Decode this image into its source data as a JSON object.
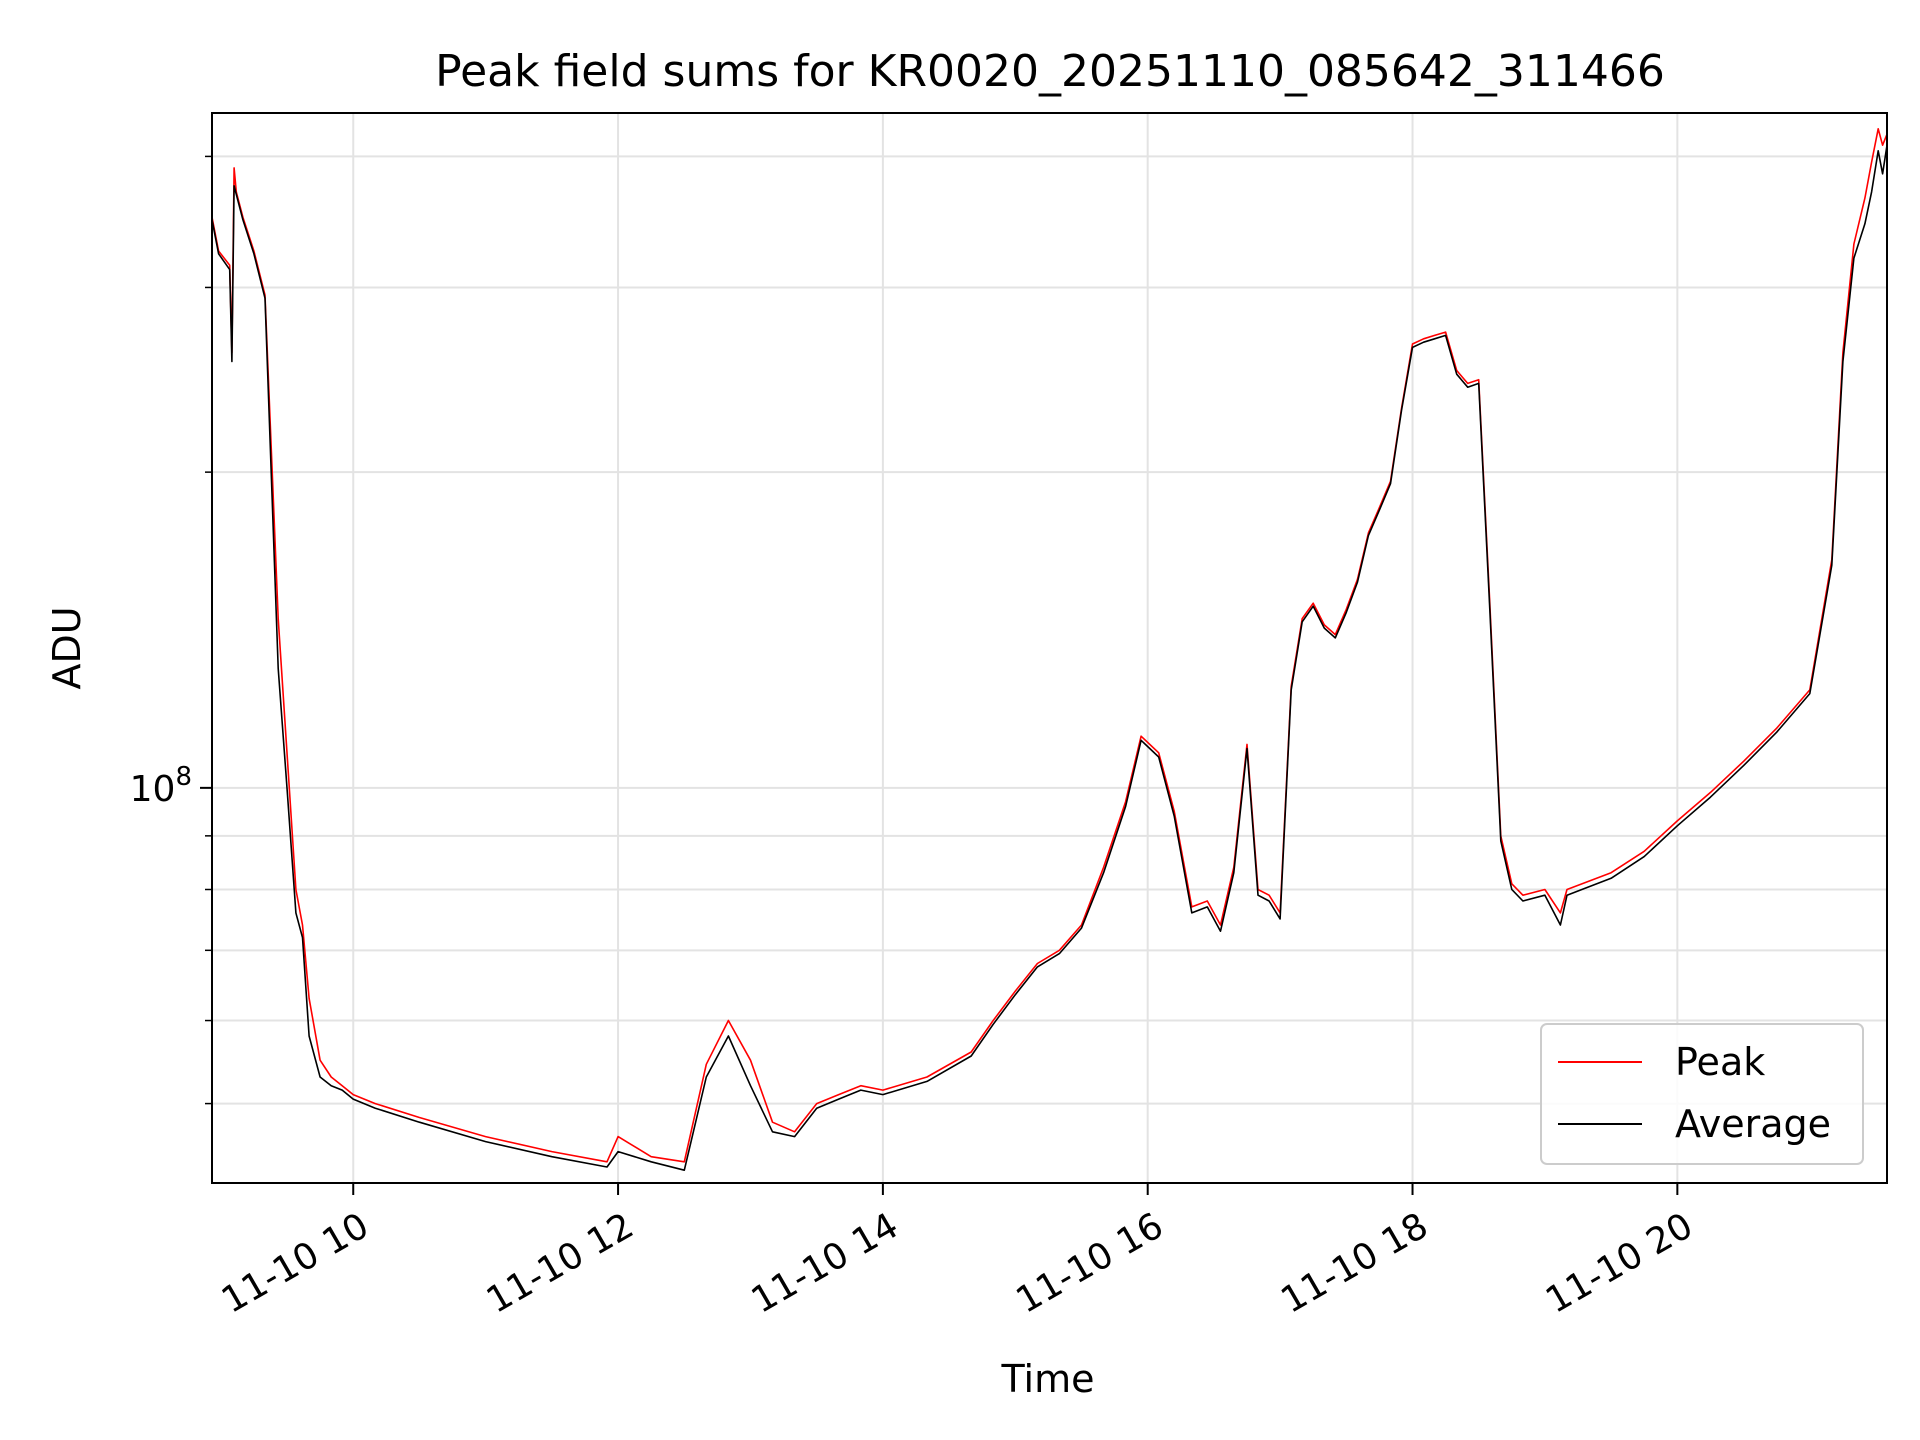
{
  "chart_data": {
    "type": "line",
    "title": "Peak field sums for KR0020_20251110_085642_311466",
    "xlabel": "Time",
    "ylabel": "ADU",
    "y_scale": "log",
    "xlim": [
      "2025-11-10 08:56",
      "2025-11-10 21:35"
    ],
    "ylim": [
      42000000,
      440000000
    ],
    "grid": true,
    "legend_position": "lower right",
    "x_ticks": [
      {
        "label": "11-10 10",
        "t": "2025-11-10 10:00"
      },
      {
        "label": "11-10 12",
        "t": "2025-11-10 12:00"
      },
      {
        "label": "11-10 14",
        "t": "2025-11-10 14:00"
      },
      {
        "label": "11-10 16",
        "t": "2025-11-10 16:00"
      },
      {
        "label": "11-10 18",
        "t": "2025-11-10 18:00"
      },
      {
        "label": "11-10 20",
        "t": "2025-11-10 20:00"
      }
    ],
    "y_major_ticks": [
      {
        "label_base": "10",
        "label_exp": "8",
        "value": 100000000
      }
    ],
    "y_minor_ticks": [
      50000000,
      60000000,
      70000000,
      80000000,
      90000000,
      200000000,
      300000000,
      400000000
    ],
    "x": [
      "2025-11-10 08:56",
      "2025-11-10 08:59",
      "2025-11-10 09:04",
      "2025-11-10 09:05",
      "2025-11-10 09:06",
      "2025-11-10 09:07",
      "2025-11-10 09:10",
      "2025-11-10 09:15",
      "2025-11-10 09:20",
      "2025-11-10 09:26",
      "2025-11-10 09:30",
      "2025-11-10 09:34",
      "2025-11-10 09:37",
      "2025-11-10 09:40",
      "2025-11-10 09:45",
      "2025-11-10 09:50",
      "2025-11-10 09:55",
      "2025-11-10 10:00",
      "2025-11-10 10:10",
      "2025-11-10 10:30",
      "2025-11-10 11:00",
      "2025-11-10 11:30",
      "2025-11-10 11:55",
      "2025-11-10 12:00",
      "2025-11-10 12:15",
      "2025-11-10 12:30",
      "2025-11-10 12:40",
      "2025-11-10 12:50",
      "2025-11-10 13:00",
      "2025-11-10 13:10",
      "2025-11-10 13:20",
      "2025-11-10 13:30",
      "2025-11-10 13:40",
      "2025-11-10 13:50",
      "2025-11-10 14:00",
      "2025-11-10 14:20",
      "2025-11-10 14:40",
      "2025-11-10 14:50",
      "2025-11-10 15:00",
      "2025-11-10 15:10",
      "2025-11-10 15:20",
      "2025-11-10 15:30",
      "2025-11-10 15:40",
      "2025-11-10 15:50",
      "2025-11-10 15:57",
      "2025-11-10 16:05",
      "2025-11-10 16:12",
      "2025-11-10 16:20",
      "2025-11-10 16:27",
      "2025-11-10 16:33",
      "2025-11-10 16:39",
      "2025-11-10 16:45",
      "2025-11-10 16:50",
      "2025-11-10 16:55",
      "2025-11-10 17:00",
      "2025-11-10 17:05",
      "2025-11-10 17:10",
      "2025-11-10 17:15",
      "2025-11-10 17:20",
      "2025-11-10 17:25",
      "2025-11-10 17:30",
      "2025-11-10 17:35",
      "2025-11-10 17:40",
      "2025-11-10 17:45",
      "2025-11-10 17:50",
      "2025-11-10 17:55",
      "2025-11-10 18:00",
      "2025-11-10 18:05",
      "2025-11-10 18:10",
      "2025-11-10 18:15",
      "2025-11-10 18:20",
      "2025-11-10 18:25",
      "2025-11-10 18:30",
      "2025-11-10 18:35",
      "2025-11-10 18:40",
      "2025-11-10 18:45",
      "2025-11-10 18:50",
      "2025-11-10 19:00",
      "2025-11-10 19:07",
      "2025-11-10 19:10",
      "2025-11-10 19:30",
      "2025-11-10 19:45",
      "2025-11-10 20:00",
      "2025-11-10 20:15",
      "2025-11-10 20:30",
      "2025-11-10 20:45",
      "2025-11-10 21:00",
      "2025-11-10 21:10",
      "2025-11-10 21:15",
      "2025-11-10 21:20",
      "2025-11-10 21:25",
      "2025-11-10 21:28",
      "2025-11-10 21:31",
      "2025-11-10 21:33",
      "2025-11-10 21:35"
    ],
    "series": [
      {
        "name": "Peak",
        "color": "#ff0000",
        "values": [
          350000000,
          325000000,
          315000000,
          260000000,
          390000000,
          370000000,
          350000000,
          325000000,
          295000000,
          145000000,
          108000000,
          80000000,
          74000000,
          63000000,
          55000000,
          53000000,
          52000000,
          51000000,
          50000000,
          48500000,
          46500000,
          45000000,
          44000000,
          46500000,
          44500000,
          44000000,
          54500000,
          60000000,
          55000000,
          48000000,
          47000000,
          50000000,
          51000000,
          52000000,
          51500000,
          53000000,
          56000000,
          60000000,
          64000000,
          68000000,
          70000000,
          74000000,
          84000000,
          97000000,
          112000000,
          108000000,
          95000000,
          77000000,
          78000000,
          74000000,
          84000000,
          110000000,
          80000000,
          79000000,
          76000000,
          125000000,
          145000000,
          150000000,
          143000000,
          140000000,
          148000000,
          158000000,
          175000000,
          185000000,
          196000000,
          230000000,
          265000000,
          268000000,
          270000000,
          272000000,
          250000000,
          243000000,
          245000000,
          150000000,
          90000000,
          81000000,
          79000000,
          80000000,
          76000000,
          80000000,
          83000000,
          87000000,
          93000000,
          99000000,
          106000000,
          114000000,
          124000000,
          165000000,
          260000000,
          330000000,
          365000000,
          395000000,
          425000000,
          410000000,
          420000000
        ]
      },
      {
        "name": "Average",
        "color": "#000000",
        "values": [
          348000000,
          323000000,
          312000000,
          255000000,
          375000000,
          368000000,
          348000000,
          323000000,
          293000000,
          130000000,
          100000000,
          76000000,
          72000000,
          58000000,
          53000000,
          52000000,
          51500000,
          50500000,
          49500000,
          48000000,
          46000000,
          44500000,
          43500000,
          45000000,
          44000000,
          43200000,
          53000000,
          58000000,
          52000000,
          47000000,
          46500000,
          49500000,
          50500000,
          51500000,
          51000000,
          52500000,
          55500000,
          59500000,
          63500000,
          67500000,
          69500000,
          73500000,
          83000000,
          96000000,
          111000000,
          107000000,
          94000000,
          76000000,
          77000000,
          73000000,
          83000000,
          109000000,
          79000000,
          78000000,
          75000000,
          124000000,
          144000000,
          149000000,
          142000000,
          139000000,
          147000000,
          157000000,
          174000000,
          184000000,
          195000000,
          229000000,
          263000000,
          266000000,
          268000000,
          270000000,
          248000000,
          241000000,
          243000000,
          148000000,
          89000000,
          80000000,
          78000000,
          79000000,
          74000000,
          79000000,
          82000000,
          86000000,
          92000000,
          98000000,
          105000000,
          113000000,
          123000000,
          163000000,
          255000000,
          320000000,
          345000000,
          370000000,
          405000000,
          385000000,
          410000000
        ]
      }
    ]
  }
}
